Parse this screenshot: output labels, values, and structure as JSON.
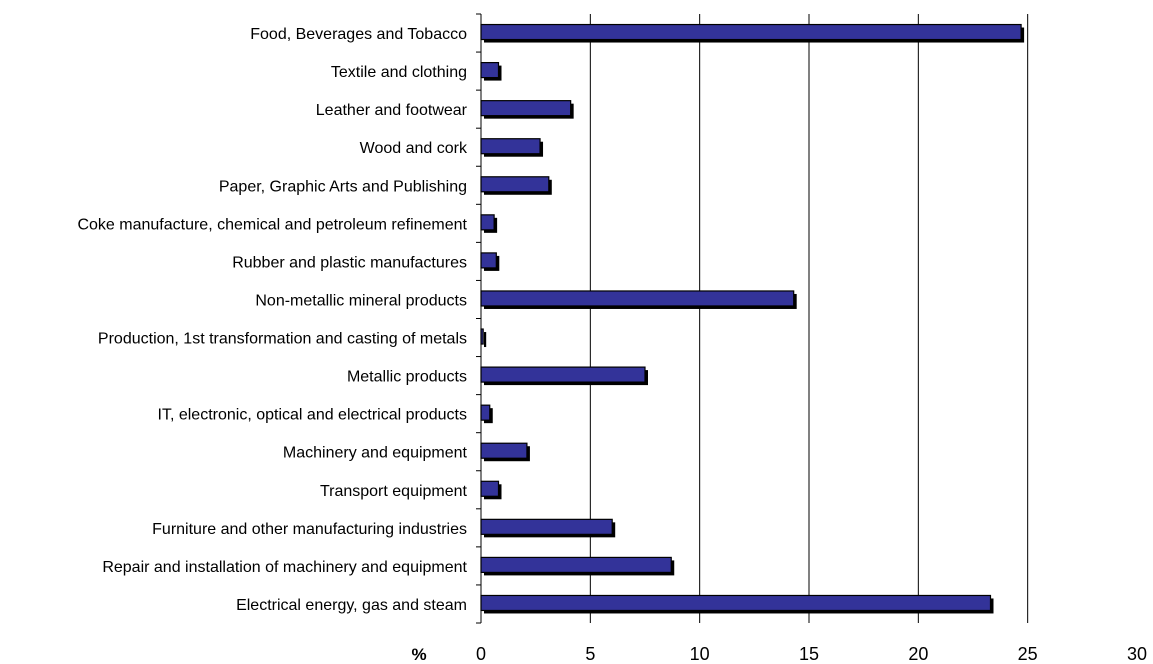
{
  "chart_data": {
    "type": "bar",
    "orientation": "horizontal",
    "categories": [
      "Food, Beverages and Tobacco",
      "Textile and clothing",
      "Leather and footwear",
      "Wood and cork",
      "Paper, Graphic Arts and Publishing",
      "Coke manufacture, chemical and petroleum refinement",
      "Rubber and plastic manufactures",
      "Non-metallic mineral products",
      "Production, 1st transformation and casting of metals",
      "Metallic products",
      "IT, electronic, optical and electrical products",
      "Machinery and equipment",
      "Transport equipment",
      "Furniture and other manufacturing industries",
      "Repair and installation of machinery and equipment",
      "Electrical energy, gas and steam"
    ],
    "values": [
      24.7,
      0.8,
      4.1,
      2.7,
      3.1,
      0.6,
      0.7,
      14.3,
      0.1,
      7.5,
      0.4,
      2.1,
      0.8,
      6.0,
      8.7,
      23.3
    ],
    "title": "",
    "xlabel": "%",
    "ylabel": "",
    "xlim": [
      0,
      30
    ],
    "xticks": [
      0,
      5,
      10,
      15,
      20,
      25,
      30
    ],
    "grid": true,
    "legend": "none",
    "colors": {
      "bar": "#333399",
      "shadow": "#000000",
      "grid": "#000000"
    }
  }
}
